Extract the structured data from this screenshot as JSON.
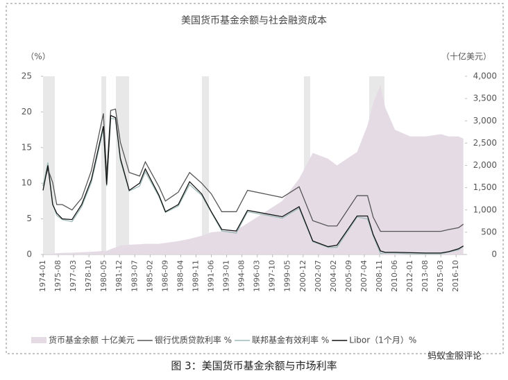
{
  "chart_data": {
    "type": "line",
    "title": "美国货币基金余额与社会融资成本",
    "y_label": "（%）",
    "y2_label": "（十亿美元）",
    "caption": "图 3：美国货币基金余额与市场利率",
    "watermark": "蚂蚁金服评论",
    "x": [
      "1974-01",
      "1974-07",
      "1975-01",
      "1975-06",
      "1976-01",
      "1977-01",
      "1978-01",
      "1979-01",
      "1980-04",
      "1980-08",
      "1981-01",
      "1981-07",
      "1982-01",
      "1982-12",
      "1984-01",
      "1984-08",
      "1986-01",
      "1986-09",
      "1988-01",
      "1989-03",
      "1990-06",
      "1991-06",
      "1992-07",
      "1994-01",
      "1995-03",
      "1998-10",
      "2000-07",
      "2001-12",
      "2003-07",
      "2004-06",
      "2006-07",
      "2007-08",
      "2008-03",
      "2008-12",
      "2009-06",
      "2010-06",
      "2012-01",
      "2013-08",
      "2015-03",
      "2016-01",
      "2017-01",
      "2017-07"
    ],
    "xlim": [
      "1974-01",
      "2017-09"
    ],
    "xticks": [
      "1974-01",
      "1975-08",
      "1977-03",
      "1978-10",
      "1980-05",
      "1981-12",
      "1983-07",
      "1985-02",
      "1986-09",
      "1988-04",
      "1989-11",
      "1991-06",
      "1993-01",
      "1994-08",
      "1996-03",
      "1997-10",
      "1999-05",
      "2000-12",
      "2002-07",
      "2004-02",
      "2005-09",
      "2007-04",
      "2008-11",
      "2010-06",
      "2012-01",
      "2013-08",
      "2015-03",
      "2016-10"
    ],
    "ylim": [
      0,
      25
    ],
    "yticks": [
      0,
      5,
      10,
      15,
      20,
      25
    ],
    "y2lim": [
      0,
      4000
    ],
    "y2ticks": [
      0,
      500,
      {
        "value": 1000,
        "label": "1,000"
      },
      {
        "value": 1500,
        "label": "1,500"
      },
      {
        "value": 2000,
        "label": "2,000"
      },
      {
        "value": 2500,
        "label": "2,500"
      },
      {
        "value": 3000,
        "label": "3,000"
      },
      {
        "value": 3500,
        "label": "3,500"
      },
      {
        "value": 4000,
        "label": "4,000"
      }
    ],
    "series": [
      {
        "name": "货币基金余额  十亿美元",
        "color": "#e4dbe5",
        "style": "area",
        "axis": "y2",
        "values": [
          2,
          10,
          20,
          30,
          35,
          40,
          50,
          60,
          80,
          80,
          120,
          160,
          200,
          220,
          230,
          240,
          240,
          260,
          300,
          350,
          420,
          500,
          520,
          550,
          700,
          1200,
          1700,
          2280,
          2150,
          2000,
          2300,
          2900,
          3400,
          3800,
          3300,
          2800,
          2650,
          2650,
          2700,
          2650,
          2650,
          2600
        ]
      },
      {
        "name": "银行优质贷款利率  %",
        "color": "#555555",
        "style": "line",
        "values": [
          9.7,
          12.0,
          10.1,
          7.0,
          7.0,
          6.25,
          7.9,
          11.75,
          19.8,
          11.1,
          20.2,
          20.4,
          15.75,
          11.5,
          11.0,
          13.0,
          9.5,
          7.5,
          8.75,
          11.5,
          10.0,
          8.5,
          6.0,
          6.0,
          9.0,
          8.0,
          9.5,
          4.75,
          4.0,
          4.0,
          8.25,
          8.25,
          5.25,
          3.25,
          3.25,
          3.25,
          3.25,
          3.25,
          3.25,
          3.5,
          3.75,
          4.25
        ]
      },
      {
        "name": "联邦基金有效利率  %",
        "color": "#9bbab7",
        "style": "line",
        "values": [
          9.6,
          12.9,
          7.1,
          5.5,
          4.9,
          4.6,
          6.7,
          10.1,
          17.6,
          9.6,
          19.1,
          19.0,
          13.2,
          8.9,
          9.6,
          11.6,
          8.1,
          5.9,
          6.8,
          9.8,
          8.3,
          5.9,
          3.3,
          3.0,
          6.0,
          5.1,
          6.5,
          1.8,
          1.0,
          1.0,
          5.25,
          5.0,
          2.6,
          0.15,
          0.2,
          0.2,
          0.1,
          0.1,
          0.1,
          0.35,
          0.65,
          1.15
        ]
      },
      {
        "name": "Libor（1个月）%",
        "color": "#111111",
        "style": "line",
        "values": [
          9.0,
          12.5,
          7.0,
          5.8,
          5.0,
          4.9,
          7.0,
          10.5,
          18.0,
          9.8,
          19.5,
          19.2,
          13.5,
          9.0,
          10.0,
          12.0,
          8.3,
          6.0,
          7.0,
          10.2,
          8.5,
          6.0,
          3.5,
          3.3,
          6.2,
          5.3,
          6.7,
          1.9,
          1.1,
          1.3,
          5.4,
          5.4,
          2.8,
          0.5,
          0.3,
          0.3,
          0.25,
          0.2,
          0.2,
          0.4,
          0.8,
          1.2
        ]
      }
    ]
  }
}
